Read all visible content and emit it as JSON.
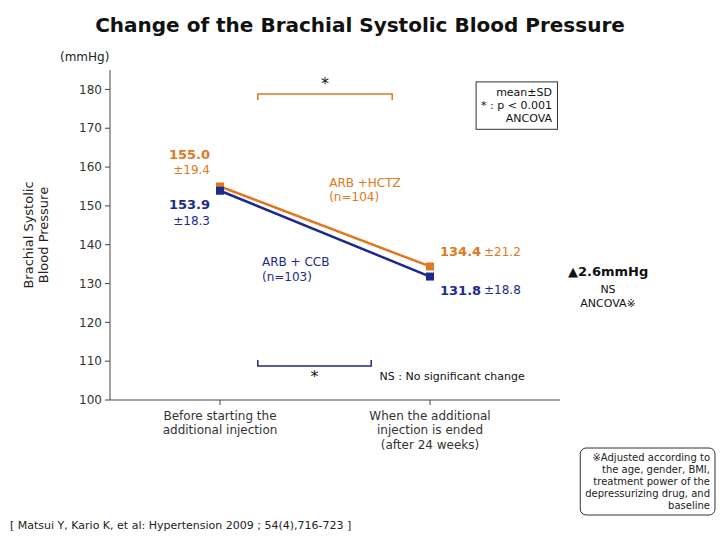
{
  "chart_data": {
    "type": "line",
    "title": "Change of the Brachial Systolic Blood Pressure",
    "y_label": "Brachial Systolic\nBlood Pressure",
    "unit_label": "(mmHg)",
    "categories": [
      "Before starting the\nadditional injection",
      "When the additional\ninjection is ended\n(after 24 weeks)"
    ],
    "ylim": [
      100,
      185
    ],
    "yticks": [
      100,
      110,
      120,
      130,
      140,
      150,
      160,
      170,
      180
    ],
    "grid": false,
    "data_labels": true,
    "series": [
      {
        "name": "ARB +HCTZ\n(n=104)",
        "color": "#e07820",
        "marker": "square",
        "values": [
          155.0,
          134.4
        ],
        "value_labels": [
          "155.0",
          "134.4"
        ],
        "sd_labels": [
          "±19.4",
          "±21.2"
        ]
      },
      {
        "name": "ARB + CCB\n(n=103)",
        "color": "#1c2a8c",
        "marker": "square",
        "values": [
          153.9,
          131.8
        ],
        "value_labels": [
          "153.9",
          "131.8"
        ],
        "sd_labels": [
          "±18.3",
          "±18.8"
        ]
      }
    ],
    "stat_note": "mean±SD\n* : p < 0.001\nANCOVA",
    "significance_marks": [
      "*",
      "*"
    ],
    "difference_label": "▲2.6mmHg",
    "difference_note": "NS\nANCOVA※",
    "ns_label": "NS : No significant change",
    "footnote": "[ Matsui Y, Kario K, et al: Hypertension 2009 ; 54(4),716-723 ]",
    "footnote2": "※Adjusted according to\nthe age, gender, BMI,\ntreatment power of the\ndepressurizing drug, and\nbaseline"
  }
}
